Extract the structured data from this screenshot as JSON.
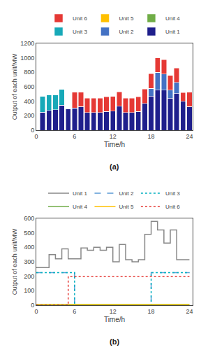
{
  "chart_data": [
    {
      "type": "bar",
      "stacked": true,
      "x": [
        1,
        2,
        3,
        4,
        5,
        6,
        7,
        8,
        9,
        10,
        11,
        12,
        13,
        14,
        15,
        16,
        17,
        18,
        19,
        20,
        21,
        22,
        23,
        24
      ],
      "series": [
        {
          "name": "Unit 1",
          "color": "#1f1f8c",
          "values": [
            250,
            275,
            285,
            345,
            300,
            305,
            325,
            245,
            245,
            245,
            260,
            265,
            330,
            245,
            245,
            260,
            370,
            470,
            560,
            555,
            445,
            510,
            400,
            325
          ]
        },
        {
          "name": "Unit 2",
          "color": "#4472c4",
          "values": [
            0,
            0,
            0,
            0,
            0,
            0,
            0,
            0,
            0,
            0,
            0,
            0,
            0,
            0,
            0,
            0,
            0,
            110,
            240,
            220,
            110,
            150,
            0,
            0
          ]
        },
        {
          "name": "Unit 3",
          "color": "#17a9b8",
          "values": [
            220,
            215,
            205,
            220,
            0,
            0,
            0,
            0,
            0,
            0,
            0,
            0,
            0,
            0,
            0,
            0,
            0,
            0,
            0,
            0,
            0,
            0,
            0,
            0
          ]
        },
        {
          "name": "Unit 4",
          "color": "#70ad47",
          "values": [
            0,
            0,
            0,
            0,
            0,
            0,
            0,
            0,
            0,
            0,
            0,
            0,
            0,
            0,
            0,
            0,
            0,
            0,
            0,
            0,
            0,
            0,
            0,
            0
          ]
        },
        {
          "name": "Unit 5",
          "color": "#ffc000",
          "values": [
            0,
            0,
            0,
            0,
            0,
            0,
            0,
            0,
            0,
            0,
            0,
            0,
            0,
            0,
            0,
            0,
            0,
            0,
            0,
            0,
            0,
            0,
            0,
            0
          ]
        },
        {
          "name": "Unit 6",
          "color": "#e53935",
          "values": [
            0,
            0,
            0,
            0,
            0,
            220,
            200,
            200,
            200,
            200,
            200,
            200,
            200,
            200,
            200,
            200,
            200,
            200,
            200,
            200,
            200,
            200,
            120,
            200
          ]
        }
      ],
      "xlim": [
        0,
        24.5
      ],
      "xticks": [
        0,
        6,
        12,
        18,
        24
      ],
      "ylim": [
        0,
        1200
      ],
      "yticks": [
        0,
        200,
        400,
        600,
        800,
        1000,
        1200
      ],
      "xlabel": "Time/h",
      "ylabel": "Output of each unit/MW",
      "annotations": [
        "(a)"
      ],
      "legend": "top",
      "grid": false
    },
    {
      "type": "line",
      "series": [
        {
          "name": "Unit 1",
          "color": "#888888",
          "line_style": "solid",
          "x": [
            0,
            1,
            1,
            2,
            2,
            3,
            3,
            4,
            4,
            5,
            5,
            6,
            6,
            7,
            7,
            8,
            8,
            9,
            9,
            10,
            10,
            11,
            11,
            12,
            12,
            13,
            13,
            14,
            14,
            15,
            15,
            16,
            16,
            17,
            17,
            18,
            18,
            19,
            19,
            20,
            20,
            21,
            21,
            22,
            22,
            23,
            23,
            24
          ],
          "values": [
            260,
            260,
            260,
            260,
            350,
            350,
            320,
            320,
            390,
            390,
            320,
            320,
            320,
            320,
            395,
            395,
            380,
            380,
            400,
            400,
            380,
            380,
            400,
            400,
            300,
            300,
            420,
            420,
            315,
            315,
            300,
            300,
            315,
            315,
            490,
            490,
            580,
            580,
            520,
            520,
            430,
            430,
            520,
            520,
            315,
            315,
            315,
            315
          ]
        },
        {
          "name": "Unit 2",
          "color": "#5b9bd5",
          "line_style": "dashed",
          "x": [
            0,
            6,
            6,
            18,
            18,
            24
          ],
          "values": [
            225,
            225,
            0,
            0,
            225,
            225
          ]
        },
        {
          "name": "Unit 3",
          "color": "#00b0c0",
          "line_style": "dotted",
          "x": [
            0,
            6,
            6,
            18,
            18,
            24
          ],
          "values": [
            225,
            225,
            0,
            0,
            225,
            225
          ]
        },
        {
          "name": "Unit 4",
          "color": "#70ad47",
          "line_style": "solid",
          "x": [
            0,
            24
          ],
          "values": [
            5,
            5
          ]
        },
        {
          "name": "Unit 5",
          "color": "#ffc000",
          "line_style": "solid",
          "x": [
            0,
            24
          ],
          "values": [
            3,
            3
          ]
        },
        {
          "name": "Unit 6",
          "color": "#e53935",
          "line_style": "dotted",
          "x": [
            0,
            5,
            5,
            24
          ],
          "values": [
            0,
            0,
            200,
            200
          ]
        }
      ],
      "xlim": [
        0,
        24.5
      ],
      "xticks": [
        0,
        6,
        12,
        18,
        24
      ],
      "ylim": [
        0,
        600
      ],
      "yticks": [
        0,
        100,
        200,
        300,
        400,
        500,
        600
      ],
      "xlabel": "Time/h",
      "ylabel": "Output of each unit/MW",
      "annotations": [
        "(b)"
      ],
      "legend": "top",
      "grid": false
    }
  ]
}
